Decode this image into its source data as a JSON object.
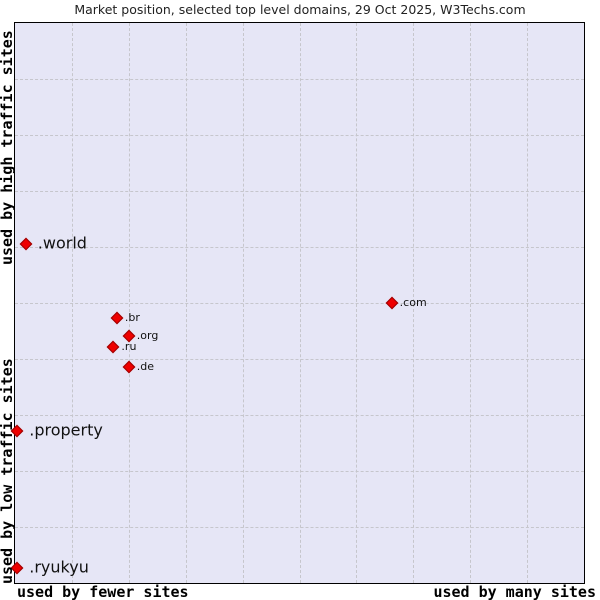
{
  "chart_data": {
    "type": "scatter",
    "title": "Market position, selected top level domains, 29 Oct 2025, W3Techs.com",
    "x_axis": {
      "left_label": "used by fewer sites",
      "right_label": "used by many sites",
      "ticks": [],
      "range": [
        0,
        1
      ]
    },
    "y_axis": {
      "top_label": "used by high traffic sites",
      "bottom_label": "used by low traffic sites",
      "ticks": [],
      "range": [
        0,
        1
      ]
    },
    "coords_note": "x and y are fractions of the plot area; y measured from the top edge (top = high traffic)",
    "points": [
      {
        "label": ".world",
        "x": 0.019,
        "y": 0.395,
        "label_size": "large"
      },
      {
        "label": ".br",
        "x": 0.179,
        "y": 0.527,
        "label_size": "small"
      },
      {
        "label": ".org",
        "x": 0.2,
        "y": 0.559,
        "label_size": "small"
      },
      {
        "label": ".ru",
        "x": 0.173,
        "y": 0.578,
        "label_size": "small"
      },
      {
        "label": ".de",
        "x": 0.2,
        "y": 0.614,
        "label_size": "small"
      },
      {
        "label": ".com",
        "x": 0.662,
        "y": 0.5,
        "label_size": "small"
      },
      {
        "label": ".property",
        "x": 0.004,
        "y": 0.728,
        "label_size": "large"
      },
      {
        "label": ".ryukyu",
        "x": 0.004,
        "y": 0.973,
        "label_size": "large"
      }
    ],
    "grid": {
      "vertical_lines": 9,
      "horizontal_lines": 9,
      "style": "dashed",
      "color": "#c6c6cc"
    },
    "legend": "none",
    "marker": {
      "shape": "diamond",
      "fill": "#ee0000",
      "stroke": "#990000"
    },
    "colors": {
      "plot_background": "#e6e6f6",
      "plot_border": "#000000",
      "title_text": "#222222",
      "label_text": "#111111"
    }
  }
}
